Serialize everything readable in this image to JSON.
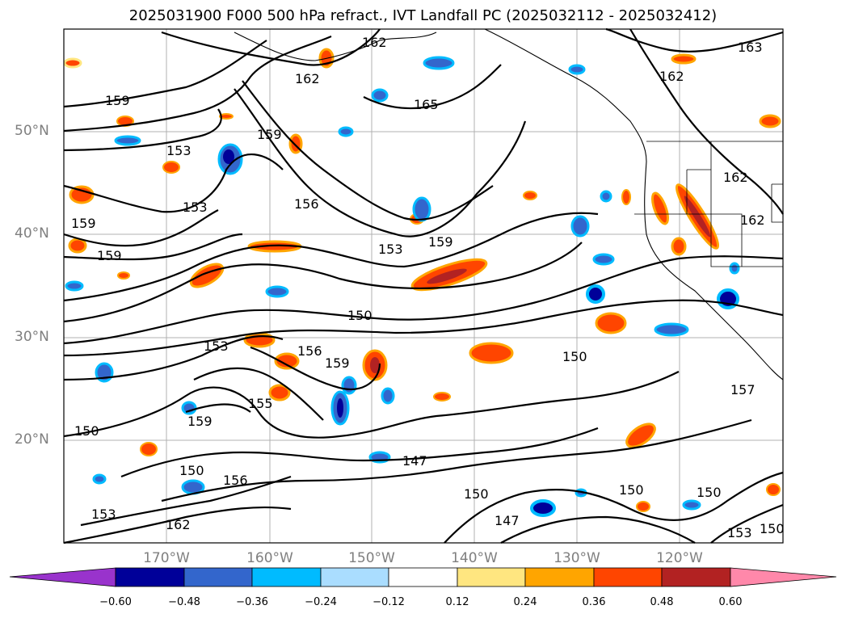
{
  "title": "2025031900 F000 500 hPa refract., IVT Landfall PC (2025032112 - 2025032412)",
  "latitude_labels": [
    "50°N",
    "40°N",
    "30°N",
    "20°N"
  ],
  "longitude_labels": [
    "170°W",
    "160°W",
    "150°W",
    "140°W",
    "130°W",
    "120°W"
  ],
  "colorbar": {
    "ticks": [
      "−0.60",
      "−0.48",
      "−0.36",
      "−0.24",
      "−0.12",
      "0.12",
      "0.24",
      "0.36",
      "0.48",
      "0.60"
    ],
    "colors": [
      "#9933cc",
      "#000099",
      "#3366cc",
      "#00bbff",
      "#aaddff",
      "#ffffff",
      "#ffe680",
      "#ffa500",
      "#ff4500",
      "#b22222",
      "#ff88aa"
    ]
  },
  "contour_labels": [
    "162",
    "163",
    "162",
    "162",
    "159",
    "165",
    "159",
    "153",
    "153",
    "156",
    "162",
    "162",
    "159",
    "159",
    "153",
    "159",
    "150",
    "153",
    "156",
    "159",
    "150",
    "155",
    "157",
    "150",
    "159",
    "147",
    "150",
    "150",
    "156",
    "153",
    "162",
    "147",
    "150",
    "150",
    "153",
    "150"
  ]
}
